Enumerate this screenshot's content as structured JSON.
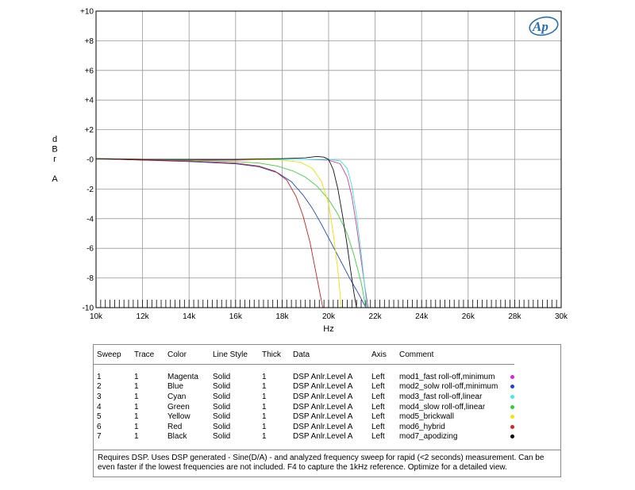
{
  "chart_data": {
    "type": "line",
    "title": "",
    "xlabel": "Hz",
    "ylabel": [
      "d",
      "B",
      "r",
      "",
      "A"
    ],
    "xlim": [
      10000,
      30000
    ],
    "ylim": [
      -10,
      10
    ],
    "x_ticks": [
      10000,
      12000,
      14000,
      16000,
      18000,
      20000,
      22000,
      24000,
      26000,
      28000,
      30000
    ],
    "x_tick_labels": [
      "10k",
      "12k",
      "14k",
      "16k",
      "18k",
      "20k",
      "22k",
      "24k",
      "26k",
      "28k",
      "30k"
    ],
    "y_ticks": [
      10,
      8,
      6,
      4,
      2,
      0,
      -2,
      -4,
      -6,
      -8,
      -10
    ],
    "y_tick_labels": [
      "+10",
      "+8",
      "+6",
      "+4",
      "+2",
      "-0",
      "-2",
      "-4",
      "-6",
      "-8",
      "-10"
    ],
    "grid": true,
    "series": [
      {
        "name": "mod1_fast roll-off,minimum",
        "color": "#d04090",
        "points": [
          [
            10000,
            0.05
          ],
          [
            12000,
            0.0
          ],
          [
            14000,
            -0.05
          ],
          [
            16000,
            -0.05
          ],
          [
            18000,
            0.0
          ],
          [
            19000,
            0.0
          ],
          [
            20000,
            -0.05
          ],
          [
            20500,
            -0.3
          ],
          [
            20800,
            -1.2
          ],
          [
            21000,
            -2.5
          ],
          [
            21200,
            -4.5
          ],
          [
            21400,
            -6.8
          ],
          [
            21550,
            -8.5
          ],
          [
            21700,
            -10
          ]
        ]
      },
      {
        "name": "mod2_solw roll-off,minimum",
        "color": "#2244cc",
        "points": [
          [
            10000,
            0.05
          ],
          [
            12000,
            -0.05
          ],
          [
            14000,
            -0.15
          ],
          [
            16000,
            -0.3
          ],
          [
            17000,
            -0.5
          ],
          [
            17800,
            -0.9
          ],
          [
            18400,
            -1.5
          ],
          [
            18900,
            -2.4
          ],
          [
            19300,
            -3.3
          ],
          [
            19700,
            -4.4
          ],
          [
            20100,
            -5.6
          ],
          [
            20500,
            -6.8
          ],
          [
            20900,
            -8.0
          ],
          [
            21300,
            -9.1
          ],
          [
            21600,
            -10
          ]
        ]
      },
      {
        "name": "mod3_fast roll-off,linear",
        "color": "#40e0e8",
        "points": [
          [
            10000,
            0.05
          ],
          [
            12000,
            0.0
          ],
          [
            14000,
            0.0
          ],
          [
            16000,
            0.0
          ],
          [
            18000,
            0.0
          ],
          [
            20000,
            0.0
          ],
          [
            20500,
            -0.1
          ],
          [
            20800,
            -0.6
          ],
          [
            21000,
            -1.8
          ],
          [
            21200,
            -3.8
          ],
          [
            21400,
            -6.3
          ],
          [
            21550,
            -8.5
          ],
          [
            21650,
            -10
          ]
        ]
      },
      {
        "name": "mod4_slow roll-off,linear",
        "color": "#44cc44",
        "points": [
          [
            10000,
            0.05
          ],
          [
            12000,
            0.0
          ],
          [
            14000,
            -0.05
          ],
          [
            16000,
            -0.15
          ],
          [
            17000,
            -0.25
          ],
          [
            17800,
            -0.45
          ],
          [
            18500,
            -0.8
          ],
          [
            19000,
            -1.2
          ],
          [
            19500,
            -1.8
          ],
          [
            20000,
            -2.7
          ],
          [
            20400,
            -3.7
          ],
          [
            20800,
            -5.0
          ],
          [
            21100,
            -6.5
          ],
          [
            21400,
            -8.3
          ],
          [
            21600,
            -10
          ]
        ]
      },
      {
        "name": "mod5_brickwall",
        "color": "#f0e000",
        "points": [
          [
            10000,
            0.05
          ],
          [
            12000,
            0.0
          ],
          [
            14000,
            0.0
          ],
          [
            16000,
            0.0
          ],
          [
            18000,
            -0.05
          ],
          [
            18800,
            -0.2
          ],
          [
            19300,
            -0.6
          ],
          [
            19700,
            -1.5
          ],
          [
            20000,
            -3.0
          ],
          [
            20200,
            -5.0
          ],
          [
            20400,
            -7.5
          ],
          [
            20550,
            -10
          ]
        ]
      },
      {
        "name": "mod6_hybrid",
        "color": "#cc2020",
        "points": [
          [
            10000,
            0.05
          ],
          [
            12000,
            -0.05
          ],
          [
            14000,
            -0.1
          ],
          [
            16000,
            -0.25
          ],
          [
            17000,
            -0.45
          ],
          [
            17700,
            -0.8
          ],
          [
            18200,
            -1.4
          ],
          [
            18600,
            -2.5
          ],
          [
            18900,
            -3.8
          ],
          [
            19200,
            -5.6
          ],
          [
            19450,
            -7.6
          ],
          [
            19650,
            -9.2
          ],
          [
            19750,
            -10
          ]
        ]
      },
      {
        "name": "mod7_apodizing",
        "color": "#111111",
        "points": [
          [
            10000,
            0.05
          ],
          [
            12000,
            0.0
          ],
          [
            14000,
            0.0
          ],
          [
            16000,
            0.0
          ],
          [
            18000,
            0.05
          ],
          [
            19000,
            0.1
          ],
          [
            19500,
            0.2
          ],
          [
            19800,
            0.15
          ],
          [
            20000,
            0.0
          ],
          [
            20200,
            -0.7
          ],
          [
            20400,
            -2.0
          ],
          [
            20600,
            -3.8
          ],
          [
            20800,
            -5.8
          ],
          [
            20950,
            -7.5
          ],
          [
            21100,
            -9.1
          ],
          [
            21200,
            -10
          ]
        ]
      }
    ]
  },
  "legend": {
    "headers": {
      "sweep": "Sweep",
      "trace": "Trace",
      "color": "Color",
      "line_style": "Line Style",
      "thick": "Thick",
      "data": "Data",
      "axis": "Axis",
      "comment": "Comment"
    },
    "rows": [
      {
        "sweep": "1",
        "trace": "1",
        "color": "Magenta",
        "line_style": "Solid",
        "thick": "1",
        "data": "DSP Anlr.Level A",
        "axis": "Left",
        "comment": "mod1_fast roll-off,minimum",
        "dot": "#e020e0"
      },
      {
        "sweep": "2",
        "trace": "1",
        "color": "Blue",
        "line_style": "Solid",
        "thick": "1",
        "data": "DSP Anlr.Level A",
        "axis": "Left",
        "comment": "mod2_solw roll-off,minimum",
        "dot": "#2040e0"
      },
      {
        "sweep": "3",
        "trace": "1",
        "color": "Cyan",
        "line_style": "Solid",
        "thick": "1",
        "data": "DSP Anlr.Level A",
        "axis": "Left",
        "comment": "mod3_fast roll-off,linear",
        "dot": "#40e8f0"
      },
      {
        "sweep": "4",
        "trace": "1",
        "color": "Green",
        "line_style": "Solid",
        "thick": "1",
        "data": "DSP Anlr.Level A",
        "axis": "Left",
        "comment": "mod4_slow roll-off,linear",
        "dot": "#30d030"
      },
      {
        "sweep": "5",
        "trace": "1",
        "color": "Yellow",
        "line_style": "Solid",
        "thick": "1",
        "data": "DSP Anlr.Level A",
        "axis": "Left",
        "comment": "mod5_brickwall",
        "dot": "#f0e800"
      },
      {
        "sweep": "6",
        "trace": "1",
        "color": "Red",
        "line_style": "Solid",
        "thick": "1",
        "data": "DSP Anlr.Level A",
        "axis": "Left",
        "comment": "mod6_hybrid",
        "dot": "#e02020"
      },
      {
        "sweep": "7",
        "trace": "1",
        "color": "Black",
        "line_style": "Solid",
        "thick": "1",
        "data": "DSP Anlr.Level A",
        "axis": "Left",
        "comment": "mod7_apodizing",
        "dot": "#000000"
      }
    ],
    "note": "Requires DSP.  Uses DSP generated - Sine(D/A) - and analyzed frequency sweep for rapid (<2 seconds) measurement. Can be even faster if the lowest frequencies are not included. F4 to capture the 1kHz reference. Optimize for a detailed view."
  },
  "logo": {
    "text": "Ap",
    "color": "#2a6fb0"
  }
}
